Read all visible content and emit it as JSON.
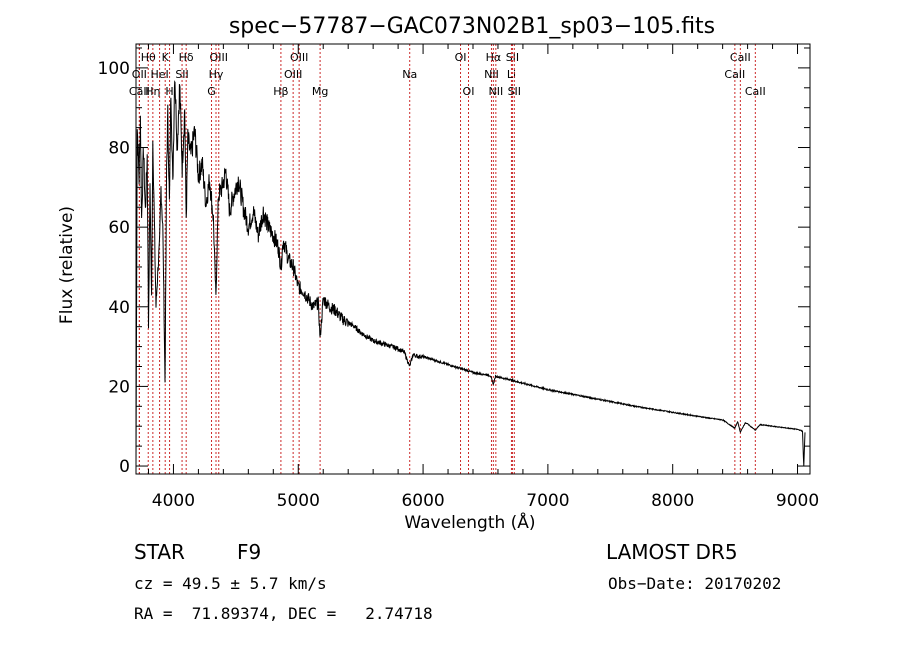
{
  "chart_data": {
    "type": "line",
    "title": "spec−57787−GAC073N02B1_sp03−105.fits",
    "xlabel": "Wavelength (Å)",
    "ylabel": "Flux (relative)",
    "xlim": [
      3700,
      9100
    ],
    "ylim": [
      -2,
      106
    ],
    "x_ticks": [
      4000,
      5000,
      6000,
      7000,
      8000,
      9000
    ],
    "y_ticks": [
      0,
      20,
      40,
      60,
      80,
      100
    ],
    "grid": false,
    "line_color": "#000000",
    "marker_color": "#cc2a2a",
    "spectrum": {
      "x": [
        3700,
        3710,
        3725,
        3735,
        3745,
        3760,
        3775,
        3790,
        3800,
        3812,
        3825,
        3835,
        3845,
        3860,
        3880,
        3889,
        3900,
        3915,
        3933,
        3945,
        3955,
        3968,
        3980,
        3995,
        4010,
        4030,
        4050,
        4070,
        4090,
        4102,
        4115,
        4140,
        4170,
        4200,
        4230,
        4260,
        4290,
        4320,
        4340,
        4360,
        4390,
        4420,
        4450,
        4480,
        4520,
        4560,
        4600,
        4640,
        4680,
        4720,
        4760,
        4800,
        4840,
        4862,
        4880,
        4920,
        4960,
        5000,
        5040,
        5080,
        5120,
        5160,
        5175,
        5200,
        5250,
        5300,
        5350,
        5400,
        5450,
        5500,
        5550,
        5600,
        5650,
        5700,
        5750,
        5800,
        5850,
        5893,
        5920,
        5960,
        6000,
        6050,
        6100,
        6150,
        6200,
        6250,
        6300,
        6350,
        6400,
        6450,
        6500,
        6540,
        6563,
        6580,
        6600,
        6650,
        6700,
        6750,
        6800,
        6850,
        6900,
        6950,
        7000,
        7100,
        7200,
        7300,
        7400,
        7500,
        7600,
        7700,
        7800,
        7900,
        8000,
        8100,
        8200,
        8300,
        8400,
        8498,
        8520,
        8542,
        8580,
        8600,
        8662,
        8700,
        8800,
        8900,
        9000,
        9040,
        9050,
        9060
      ],
      "y": [
        0,
        85,
        72,
        88,
        62,
        80,
        64,
        78,
        35,
        70,
        42,
        82,
        65,
        40,
        52,
        55,
        70,
        60,
        20,
        75,
        88,
        65,
        95,
        70,
        100,
        80,
        96,
        75,
        90,
        62,
        82,
        78,
        84,
        73,
        76,
        66,
        72,
        62,
        42,
        68,
        70,
        74,
        64,
        68,
        72,
        65,
        60,
        64,
        58,
        64,
        60,
        58,
        55,
        50,
        57,
        52,
        50,
        45,
        44,
        42,
        40,
        41,
        32,
        42,
        40,
        39,
        37,
        36,
        35,
        33.5,
        32.5,
        31.5,
        31,
        30.5,
        30,
        29.5,
        28.5,
        25,
        28,
        27.5,
        27.5,
        27,
        26.5,
        26,
        25.5,
        25,
        24.5,
        24,
        23.5,
        23.2,
        23,
        22.7,
        20.5,
        22.5,
        22.4,
        22,
        21.7,
        21.2,
        20.8,
        20.4,
        20,
        19.6,
        19.2,
        18.6,
        18,
        17.4,
        16.8,
        16.2,
        15.6,
        15,
        14.5,
        14,
        13.5,
        13,
        12.5,
        12,
        11.6,
        9.5,
        11.2,
        8.5,
        10.8,
        10.6,
        9,
        10.4,
        10,
        9.6,
        9.2,
        8.8,
        0,
        8.5
      ]
    },
    "line_markers": [
      {
        "label": "Hθ",
        "wavelength": 3798,
        "row": 1
      },
      {
        "label": "OII",
        "wavelength": 3727,
        "row": 2
      },
      {
        "label": "CaII",
        "wavelength": 3727,
        "row": 3
      },
      {
        "label": "Hη",
        "wavelength": 3835,
        "row": 3
      },
      {
        "label": "HeI",
        "wavelength": 3889,
        "row": 2
      },
      {
        "label": "K",
        "wavelength": 3934,
        "row": 1
      },
      {
        "label": "SII",
        "wavelength": 4069,
        "row": 2
      },
      {
        "label": "H",
        "wavelength": 3969,
        "row": 3
      },
      {
        "label": "Hδ",
        "wavelength": 4102,
        "row": 1
      },
      {
        "label": "OIII",
        "wavelength": 4363,
        "row": 1
      },
      {
        "label": "Hγ",
        "wavelength": 4341,
        "row": 2
      },
      {
        "label": "G",
        "wavelength": 4305,
        "row": 3
      },
      {
        "label": "OIII",
        "wavelength": 5007,
        "row": 1
      },
      {
        "label": "OIII",
        "wavelength": 4959,
        "row": 2
      },
      {
        "label": "Hβ",
        "wavelength": 4861,
        "row": 3
      },
      {
        "label": "Mg",
        "wavelength": 5175,
        "row": 3
      },
      {
        "label": "Na",
        "wavelength": 5893,
        "row": 2
      },
      {
        "label": "OI",
        "wavelength": 6300,
        "row": 1
      },
      {
        "label": "OI",
        "wavelength": 6364,
        "row": 3
      },
      {
        "label": "Hα",
        "wavelength": 6563,
        "row": 1
      },
      {
        "label": "SII",
        "wavelength": 6716,
        "row": 1
      },
      {
        "label": "NII",
        "wavelength": 6548,
        "row": 2
      },
      {
        "label": "Li",
        "wavelength": 6708,
        "row": 2
      },
      {
        "label": "NII",
        "wavelength": 6583,
        "row": 3
      },
      {
        "label": "SII",
        "wavelength": 6731,
        "row": 3
      },
      {
        "label": "CaII",
        "wavelength": 8542,
        "row": 1
      },
      {
        "label": "CaII",
        "wavelength": 8498,
        "row": 2
      },
      {
        "label": "CaII",
        "wavelength": 8662,
        "row": 3
      }
    ]
  },
  "info": {
    "object_class": "STAR",
    "subclass": "F9",
    "survey": "LAMOST DR5",
    "redshift_line": "cz = 49.5 ± 5.7 km/s",
    "obs_date_line": "Obs−Date: 20170202",
    "coords_line": "RA =  71.89374, DEC =   2.74718"
  }
}
